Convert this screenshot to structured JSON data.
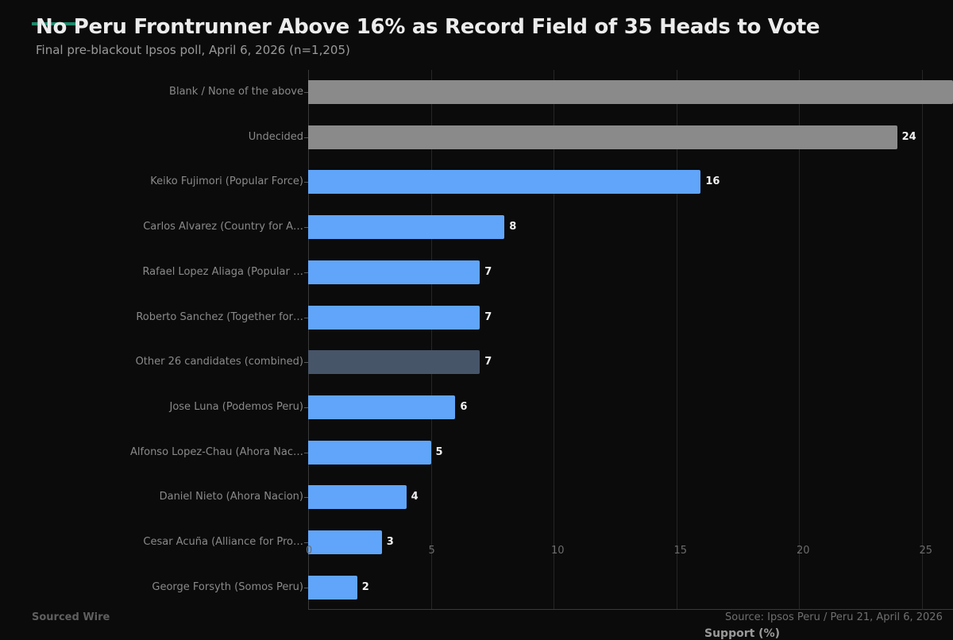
{
  "header": {
    "title": "No Peru Frontrunner Above 16% as Record Field of 35 Heads to Vote",
    "subtitle": "Final pre-blackout Ipsos poll, April 6, 2026 (n=1,205)",
    "accent_color": "#1a8a6b"
  },
  "footer": {
    "brand": "Sourced Wire",
    "source": "Source: Ipsos Peru / Peru 21, April 6, 2026"
  },
  "colors": {
    "candidate": "#60a5fa",
    "neutral": "#8a8a8a",
    "other": "#475569",
    "background": "#0b0b0b"
  },
  "chart_data": {
    "type": "bar",
    "orientation": "horizontal",
    "title": "No Peru Frontrunner Above 16% as Record Field of 35 Heads to Vote",
    "subtitle": "Final pre-blackout Ipsos poll, April 6, 2026 (n=1,205)",
    "xlabel": "Support (%)",
    "ylabel": "",
    "xlim": [
      0,
      26.3
    ],
    "xticks": [
      0,
      5,
      10,
      15,
      20,
      25
    ],
    "grid": true,
    "categories": [
      "Blank / None of the above",
      "Undecided",
      "Keiko Fujimori (Popular Force)",
      "Carlos Alvarez (Country for A…",
      "Rafael Lopez Aliaga (Popular …",
      "Roberto Sanchez (Together for…",
      "Other 26 candidates (combined)",
      "Jose Luna (Podemos Peru)",
      "Alfonso Lopez-Chau (Ahora Nac…",
      "Daniel Nieto (Ahora Nacion)",
      "Cesar Acuña (Alliance for Pro…",
      "George Forsyth (Somos Peru)"
    ],
    "values": [
      28,
      24,
      16,
      8,
      7,
      7,
      7,
      6,
      5,
      4,
      3,
      2
    ],
    "value_labels": [
      "",
      "24",
      "16",
      "8",
      "7",
      "7",
      "7",
      "6",
      "5",
      "4",
      "3",
      "2"
    ],
    "bar_kinds": [
      "neutral",
      "neutral",
      "candidate",
      "candidate",
      "candidate",
      "candidate",
      "other",
      "candidate",
      "candidate",
      "candidate",
      "candidate",
      "candidate"
    ],
    "notes": "Blank / None of the above bar is clipped at the right edge (value exceeds visible axis range, label not visible)"
  }
}
